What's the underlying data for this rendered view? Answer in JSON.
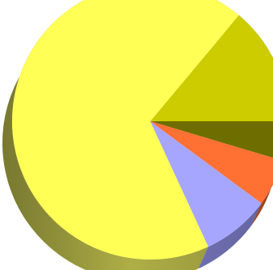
{
  "chart_data": {
    "type": "pie",
    "style": "3d",
    "title": "",
    "legend": "none",
    "slices": [
      {
        "value": 4.6,
        "color": "#6e6e00",
        "side_color": "#555500"
      },
      {
        "value": 13.9,
        "color": "#cccc00",
        "side_color": "#9a9a00"
      },
      {
        "value": 68.0,
        "color": "#ffff55",
        "side_color": "#b8b84a"
      },
      {
        "value": 8.0,
        "color": "#a6a6ff",
        "side_color": "#8080cc"
      },
      {
        "value": 5.5,
        "color": "#ff7033",
        "side_color": "#cc5a28"
      }
    ]
  }
}
